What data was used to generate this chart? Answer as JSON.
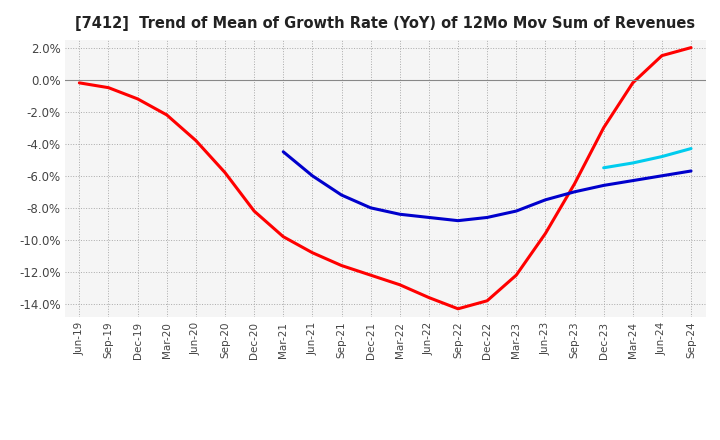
{
  "title": "[7412]  Trend of Mean of Growth Rate (YoY) of 12Mo Mov Sum of Revenues",
  "ylim": [
    -0.148,
    0.025
  ],
  "yticks": [
    0.02,
    0.0,
    -0.02,
    -0.04,
    -0.06,
    -0.08,
    -0.1,
    -0.12,
    -0.14
  ],
  "line_colors": {
    "3 Years": "#ff0000",
    "5 Years": "#0000cc",
    "7 Years": "#00ccee",
    "10 Years": "#008800"
  },
  "x_labels": [
    "Jun-19",
    "Sep-19",
    "Dec-19",
    "Mar-20",
    "Jun-20",
    "Sep-20",
    "Dec-20",
    "Mar-21",
    "Jun-21",
    "Sep-21",
    "Dec-21",
    "Mar-22",
    "Jun-22",
    "Sep-22",
    "Dec-22",
    "Mar-23",
    "Jun-23",
    "Sep-23",
    "Dec-23",
    "Mar-24",
    "Jun-24",
    "Sep-24"
  ],
  "series": {
    "3 Years": [
      -0.002,
      -0.005,
      -0.012,
      -0.022,
      -0.038,
      -0.058,
      -0.082,
      -0.098,
      -0.108,
      -0.116,
      -0.122,
      -0.128,
      -0.136,
      -0.143,
      -0.138,
      -0.122,
      -0.096,
      -0.065,
      -0.03,
      -0.002,
      0.015,
      0.02
    ],
    "5 Years": [
      null,
      null,
      null,
      null,
      null,
      null,
      null,
      -0.045,
      -0.06,
      -0.072,
      -0.08,
      -0.084,
      -0.086,
      -0.088,
      -0.086,
      -0.082,
      -0.075,
      -0.07,
      -0.066,
      -0.063,
      -0.06,
      -0.057
    ],
    "7 Years": [
      null,
      null,
      null,
      null,
      null,
      null,
      null,
      null,
      null,
      null,
      null,
      null,
      null,
      null,
      null,
      null,
      null,
      null,
      -0.055,
      -0.052,
      -0.048,
      -0.043
    ],
    "10 Years": [
      null,
      null,
      null,
      null,
      null,
      null,
      null,
      null,
      null,
      null,
      null,
      null,
      null,
      null,
      null,
      null,
      null,
      null,
      null,
      null,
      null,
      null
    ]
  },
  "background_color": "#f5f5f5",
  "grid_color": "#aaaaaa",
  "zero_line_color": "#888888"
}
